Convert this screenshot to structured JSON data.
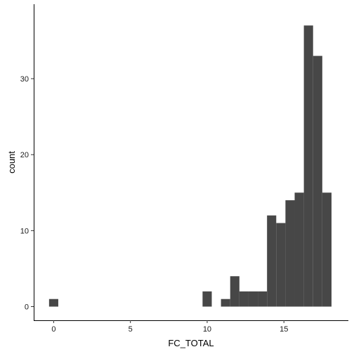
{
  "chart_data": {
    "type": "bar",
    "subtype": "histogram",
    "xlabel": "FC_TOTAL",
    "ylabel": "count",
    "x_ticks": [
      0,
      5,
      10,
      15
    ],
    "y_ticks": [
      0,
      10,
      20,
      30
    ],
    "xlim": [
      -1.3,
      19.2
    ],
    "ylim": [
      -1.8,
      39.8
    ],
    "bin_width": 0.6,
    "bins": [
      {
        "x0": -0.3,
        "x1": 0.3,
        "count": 1
      },
      {
        "x0": 9.7,
        "x1": 10.3,
        "count": 2
      },
      {
        "x0": 10.9,
        "x1": 11.5,
        "count": 1
      },
      {
        "x0": 11.5,
        "x1": 12.1,
        "count": 4
      },
      {
        "x0": 12.1,
        "x1": 12.7,
        "count": 2
      },
      {
        "x0": 12.7,
        "x1": 13.3,
        "count": 2
      },
      {
        "x0": 13.3,
        "x1": 13.9,
        "count": 2
      },
      {
        "x0": 13.9,
        "x1": 14.5,
        "count": 12
      },
      {
        "x0": 14.5,
        "x1": 15.1,
        "count": 11
      },
      {
        "x0": 15.1,
        "x1": 15.7,
        "count": 14
      },
      {
        "x0": 15.7,
        "x1": 16.3,
        "count": 15
      },
      {
        "x0": 16.3,
        "x1": 16.9,
        "count": 37
      },
      {
        "x0": 16.9,
        "x1": 17.5,
        "count": 33
      },
      {
        "x0": 17.5,
        "x1": 18.1,
        "count": 15
      }
    ],
    "bar_color": "#474747",
    "grid": false,
    "legend": "none"
  }
}
